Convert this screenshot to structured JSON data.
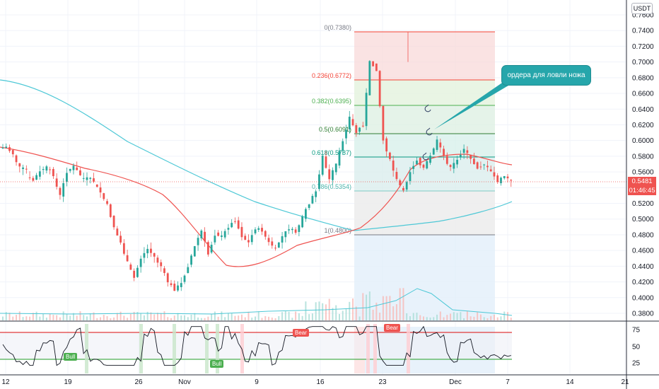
{
  "chart": {
    "currency_unit": "USDT",
    "price_axis_labels": [
      "0.7600",
      "0.7400",
      "0.7200",
      "0.7000",
      "0.6800",
      "0.6600",
      "0.6400",
      "0.6200",
      "0.6000",
      "0.5800",
      "0.5600",
      "0.5400",
      "0.5200",
      "0.5000",
      "0.4800",
      "0.4600",
      "0.4400",
      "0.4200",
      "0.4000",
      "0.3800"
    ],
    "current_price": "0.5481",
    "countdown": "01:46:45",
    "time_axis_labels": [
      "12",
      "19",
      "26",
      "Nov",
      "9",
      "16",
      "23",
      "Dec",
      "7",
      "14",
      "21"
    ],
    "rsi_axis_labels": [
      "75",
      "50",
      "25"
    ],
    "annotation_text": "ордера для ловли ножа",
    "signal_labels": {
      "bull_1": "Bull",
      "bull_2": "Bull",
      "bear_1": "Bear",
      "bear_2": "Bear"
    },
    "colors": {
      "up": "#26a69a",
      "down": "#ef5350",
      "ma_fast": "#ef5350",
      "ma_slow": "#4dc8d6",
      "rsi_line": "#131722",
      "rsi_upper": "#e03a3a",
      "rsi_lower": "#4caf50",
      "fib_red": "#f44336",
      "fib_green": "#4caf50",
      "fib_teal": "#089981",
      "fib_grey": "#787b86",
      "callout": "#26a6ab"
    }
  },
  "chart_data": {
    "type": "candlestick",
    "title": "",
    "ylim": [
      0.37,
      0.77
    ],
    "rsi_ylim": [
      10,
      85
    ],
    "fib_levels": [
      {
        "ratio": "0",
        "price": 0.738,
        "label": "0(0.7380)"
      },
      {
        "ratio": "0.236",
        "price": 0.6772,
        "label": "0.236(0.6772)"
      },
      {
        "ratio": "0.382",
        "price": 0.6395,
        "label": "0.382(0.6395)"
      },
      {
        "ratio": "0.5",
        "price": 0.6091,
        "label": "0.5(0.6091)"
      },
      {
        "ratio": "0.618",
        "price": 0.5787,
        "label": "0.618(0.5787)"
      },
      {
        "ratio": "0.786",
        "price": 0.5354,
        "label": "0.786(0.5354)"
      },
      {
        "ratio": "1",
        "price": 0.48,
        "label": "1(0.4800)"
      }
    ],
    "rsi_levels": [
      70,
      30
    ],
    "close_path": [
      [
        0.59,
        0.592
      ],
      [
        0.591,
        0.583
      ],
      [
        0.58,
        0.566
      ],
      [
        0.566,
        0.563
      ],
      [
        0.555,
        0.549
      ],
      [
        0.551,
        0.56
      ],
      [
        0.562,
        0.566
      ],
      [
        0.566,
        0.556
      ],
      [
        0.552,
        0.53
      ],
      [
        0.53,
        0.56
      ],
      [
        0.561,
        0.567
      ],
      [
        0.567,
        0.556
      ],
      [
        0.552,
        0.552
      ],
      [
        0.554,
        0.548
      ],
      [
        0.546,
        0.534
      ],
      [
        0.533,
        0.518
      ],
      [
        0.517,
        0.49
      ],
      [
        0.488,
        0.47
      ],
      [
        0.468,
        0.445
      ],
      [
        0.444,
        0.425
      ],
      [
        0.426,
        0.45
      ],
      [
        0.451,
        0.462
      ],
      [
        0.462,
        0.452
      ],
      [
        0.45,
        0.44
      ],
      [
        0.44,
        0.42
      ],
      [
        0.42,
        0.41
      ],
      [
        0.411,
        0.418
      ],
      [
        0.418,
        0.44
      ],
      [
        0.442,
        0.465
      ],
      [
        0.467,
        0.485
      ],
      [
        0.486,
        0.455
      ],
      [
        0.456,
        0.48
      ],
      [
        0.481,
        0.478
      ],
      [
        0.478,
        0.49
      ],
      [
        0.491,
        0.498
      ],
      [
        0.498,
        0.478
      ],
      [
        0.478,
        0.47
      ],
      [
        0.471,
        0.488
      ],
      [
        0.489,
        0.485
      ],
      [
        0.485,
        0.47
      ],
      [
        0.471,
        0.462
      ],
      [
        0.463,
        0.478
      ],
      [
        0.479,
        0.488
      ],
      [
        0.489,
        0.483
      ],
      [
        0.483,
        0.502
      ],
      [
        0.503,
        0.52
      ],
      [
        0.522,
        0.535
      ],
      [
        0.536,
        0.58
      ],
      [
        0.58,
        0.55
      ],
      [
        0.552,
        0.57
      ],
      [
        0.571,
        0.6
      ],
      [
        0.6,
        0.63
      ],
      [
        0.628,
        0.61
      ],
      [
        0.612,
        0.62
      ],
      [
        0.62,
        0.7
      ],
      [
        0.7,
        0.69
      ],
      [
        0.688,
        0.6
      ],
      [
        0.6,
        0.575
      ],
      [
        0.574,
        0.55
      ],
      [
        0.55,
        0.535
      ],
      [
        0.536,
        0.56
      ],
      [
        0.562,
        0.575
      ],
      [
        0.575,
        0.565
      ],
      [
        0.566,
        0.58
      ],
      [
        0.581,
        0.6
      ],
      [
        0.6,
        0.58
      ],
      [
        0.578,
        0.565
      ],
      [
        0.566,
        0.575
      ],
      [
        0.576,
        0.59
      ],
      [
        0.59,
        0.576
      ],
      [
        0.576,
        0.565
      ],
      [
        0.565,
        0.57
      ],
      [
        0.57,
        0.56
      ],
      [
        0.56,
        0.548
      ],
      [
        0.548,
        0.555
      ],
      [
        0.555,
        0.548
      ]
    ]
  }
}
